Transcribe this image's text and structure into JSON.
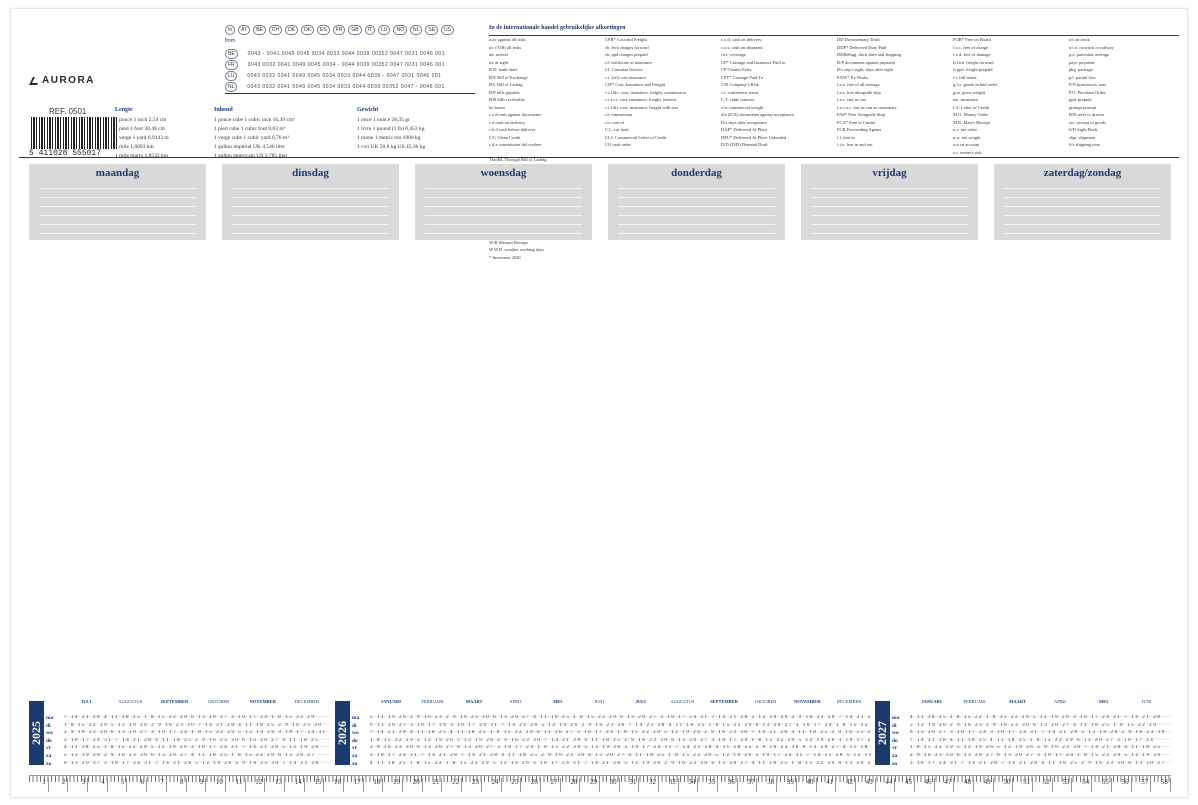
{
  "brand": {
    "logo_text": "AURORA",
    "ref_label": "REF. 0501",
    "barcode_number": "5 411028 555017"
  },
  "countries": {
    "to_label": "to",
    "from_label": "from",
    "header_codes": [
      "AT",
      "BE",
      "CH",
      "DE",
      "DK",
      "ES",
      "FR",
      "GB",
      "IT",
      "LU",
      "NO",
      "NL",
      "SE",
      "US"
    ],
    "rows": [
      {
        "code": "BE",
        "numbers": "0043 - 0041 0049 0045 0034 0033 0044 0039 00352 0047 0031 0046 001"
      },
      {
        "code": "FR",
        "numbers": "0043 0032 0041 0049 0045 0034 - 0044 0039 00352 0047 0031 0046 001"
      },
      {
        "code": "LU",
        "numbers": "0043 0032 0041 0049 0045 0034 0033 0044 0039 - 0047 0031 0046 001"
      },
      {
        "code": "NL",
        "numbers": "0043 0032 0041 0049 0045 0034 0033 0044 0039 00352 0047 - 0046 001"
      }
    ]
  },
  "units": [
    {
      "title": "Lengte",
      "rows": [
        "1 pouce   1 inch   2,54 cm",
        "1 pied   1 foot   30,48 cm",
        "1 verge   1 yard   0,9143 m",
        "1 mile      1,6093 km",
        "1 mile marin      1,8532 km"
      ]
    },
    {
      "title": "Inhoud",
      "rows": [
        "1 pouce cube   1 cubic inch   16,39 cm³",
        "1 pied cube   1 cubic foot   0,03 m³",
        "1 verge cube   1 cubic yard   0,76 m³",
        "1 gallon impérial   UK   4,546 liter",
        "1 gallon américain   US   3,785 liter"
      ]
    },
    {
      "title": "Gewicht",
      "rows": [
        "1 once   1 ounce   28,35 gr",
        "1 livre   1 pound (1 lb)   0,453 kg",
        "1 tonne   1 metric ton   1000 kg",
        "1 cwt   UK 50,8 kg   US 45,36 kg"
      ]
    }
  ],
  "terms": {
    "title": "In de internationale handel gebruikelijke afkortingen",
    "columns": [
      [
        "a.a.r  against all risks",
        "a/c (A/R)  all risks",
        "arr.  arrival",
        "a/s  at sight",
        "B.D.  bank draft",
        "B/E  Bill of Exchange",
        "B/L  Bill of Lading",
        "B/P  bills payable",
        "B/R  bills receivable",
        "bx  boxes",
        "c.a.d  cash against documents",
        "c.d  cash on delivery",
        "c.b.d  cash before delivery",
        "C/C  Clean Credit",
        "c.d.a  commission del credere"
      ],
      [
        "CFR*  Cost and Freight",
        "ch. fwd  charges forward",
        "ch. ppd  charges prepaid",
        "c/f  certificate of insurance",
        "CI.  Consular Invoice",
        "c.i. (cif)  cost insurance",
        "CIF*  Cost, Insurance and Freight",
        "c.i.f.&c.  cost, insurance, freight, commission",
        "c.i.f.c.i.  cost, insurance, freight, interest",
        "c.i.f.&i.  cost, insurance, freight with war",
        "c/i  commission",
        "c/o  care of",
        "C.L.  car load",
        "CLC  Commercial Letter of Credit",
        "CO  cash order"
      ],
      [
        "c.o.d.  cash on delivery",
        "c.o.s.  cash on shipment",
        "cov.  coverage",
        "CP*  Carriage and Insurance Paid to",
        "CP  Charter Party",
        "CPT*  Carriage Paid To",
        "C/R  Company's Risk",
        "c.t.  conference terms",
        "C.T.  cable transfer",
        "c/w  commercial weight",
        "d/a (D/A)  documents against acceptance",
        "D/s  days after acceptance",
        "DAP*  Delivered At Place",
        "DPU*  Delivered At Place Unloaded",
        "D/D (D/D)  Demand Draft"
      ],
      [
        "DD  Documentary Draft",
        "DDP*  Delivered Duty Paid",
        "DD&Shpg.  dock dues and shipping",
        "D/P  documents against payment",
        "D/s  day's sight, days after sight",
        "EXW*  Ex Works",
        "f.a.a.  free of all average",
        "f.a.s.  free alongside ship",
        "f.a.c.  fast as can",
        "f.a.c.a.c.  fast as can as customary",
        "FAS*  Free Alongside Ship",
        "FCA*  Free to Carrier",
        "FCR  Forwarding Agents",
        "f.i.  free in",
        "f.i.o.  free in and out"
      ],
      [
        "FOB*  Free on Board",
        "f.o.c.  free of charge",
        "f.o.d.  free of damage",
        "fr.fwd.  freight forward",
        "fr.ppd.  freight prepaid",
        "f.t.  full terms",
        "g.f.o.  goods in bad order",
        "g.m.  gross weight",
        "ins.  insurance",
        "L/C  Letter of Credit",
        "M.O.  Money Order",
        "M.R.  Mate's Receipt",
        "n.v.  net value",
        "n.w.  net weight",
        "o/a  on account",
        "o.r.  owner's risk"
      ],
      [
        "o/t  on truck",
        "o/t.o.  on truck or railway",
        "p.a.  particular average",
        "payt.  payment",
        "pkg.  package",
        "p.l.  partial loss",
        "P/N  promissory note",
        "P.O.  Purchase Order",
        "ppd.  prepaid",
        "prompt  prompt",
        "R/D  refer to drawer",
        "rec.  receipt of goods",
        "S/D  Sight Draft",
        "shpt.  shipment",
        "S/s  shipping note"
      ],
      [
        "ThroBL  Through Bill of Lading",
        "t.l.o.  total loss only",
        "tt.  tare",
        "TT  Telegraphic Transfer",
        "u.c.  usual conditions",
        "u.t.  usual terms",
        "U/W  underwriter",
        "val.  Valuta",
        "vd.p.  values per... valeurs par",
        "W/B  waybill",
        "W/M  weight or measurement",
        "W/R  Warrant Receipt",
        "W.W.D.  weather working days",
        "* Incoterms 2020"
      ]
    ]
  },
  "weekdays": [
    "maandag",
    "dinsdag",
    "woensdag",
    "donderdag",
    "vrijdag",
    "zaterdag/zondag"
  ],
  "calendar": {
    "weekday_abbr": [
      "ma",
      "di",
      "wo",
      "do",
      "vr",
      "za",
      "zo"
    ],
    "years": [
      {
        "year": "2025",
        "months": [
          "JULI",
          "AUGUSTUS",
          "SEPTEMBER",
          "OKTOBER",
          "NOVEMBER",
          "DECEMBER"
        ],
        "bold_months": [
          "JULI",
          "SEPTEMBER",
          "NOVEMBER"
        ]
      },
      {
        "year": "2026",
        "months": [
          "JANUARI",
          "FEBRUARI",
          "MAART",
          "APRIL",
          "MEI",
          "JUNI",
          "JULI",
          "AUGUSTUS",
          "SEPTEMBER",
          "OKTOBER",
          "NOVEMBER",
          "DECEMBER"
        ],
        "bold_months": [
          "JANUARI",
          "MAART",
          "MEI",
          "JULI",
          "SEPTEMBER",
          "NOVEMBER"
        ]
      },
      {
        "year": "2027",
        "months": [
          "JANUARI",
          "FEBRUARI",
          "MAART",
          "APRIL",
          "MEI",
          "JUNI"
        ],
        "bold_months": [
          "JANUARI",
          "MAART",
          "MEI"
        ]
      }
    ],
    "rows_2025": [
      "7 14 21 28  4 11 18 25  1 8 15 22 29  6 13 20 27  3 10 17 24  1 8 15 22 29",
      "1 8 15 22 29  5 12 19 26  2 9 16 23 30  7 14 21 28  4 11 18 25  2 9 16 23 30",
      "2 9 16 23 30  6 13 20 27  3 10 17 24  1 8 15 22 29  5 12 19 26  3 10 17 24 31",
      "3 10 17 24 31  7 14 21 28  4 11 18 25  2 9 16 23 30  6 13 20 27  4 11 18 25",
      "4 11 18 25  1 8 15 22 29  5 12 19 26  3 10 17 24 31  7 14 21 28  5 12 19 26",
      "5 12 19 26  2 9 16 23 30  6 13 20 27  4 11 18 25  1 8 15 22 29  6 13 20 27",
      "6 13 20 27  3 10 17 24 31  7 14 21 28  5 12 19 26  2 9 16 23 30  7 14 21 28"
    ],
    "rows_2026": [
      "5 12 19 26  2 9 16 23  2 9 16 23 30  6 13 20 27  4 11 18 25  1 8 15 22 29  6 13 20 27  3 10 17 24 31  7 14 21 28  5 12 19 26  2 9 16 23 30  7 14 21 28",
      "6 13 20 27  3 10 17 24  3 10 17 24 31  7 14 21 28  5 12 19 26  2 9 16 23 30  7 14 21 28  4 11 18 25  1 8 15 22 29  6 13 20 27  3 10 17 24  1 8 15 22 29",
      "7 14 21 28  4 11 18 25  4 11 18 25  1 8 15 22 29  6 13 20 27  3 10 17 24  1 8 15 22 29  5 12 19 26  2 9 16 23 30  7 14 21 28  4 11 18 25  2 9 16 23 30",
      "1 8 15 22 29  5 12 19 26  5 12 19 26  2 9 16 23 30  7 14 21 28  4 11 18 25  2 9 16 23 30  6 13 20 27  3 10 17 24  1 8 15 22 29  5 12 19 26  3 10 17 24 31",
      "2 9 16 23 30  6 13 20 27  6 13 20 27  3 10 17 24  1 8 15 22 29  5 12 19 26  3 10 17 24 31  7 14 21 28  4 11 18 25  2 9 16 23 30  6 13 20 27  4 11 18 25",
      "3 10 17 24 31  7 14 21 28  7 14 21 28  4 11 18 25  2 9 16 23 30  6 13 20 27  4 11 18 25  1 8 15 22 29  5 12 19 26  3 10 17 24 31  7 14 21 28  5 12 19 26",
      "4 11 18 25  1 8 15 22  1 8 15 22 29  5 12 19 26  3 10 17 24 31  7 14 21 28  5 12 19 26  2 9 16 23 30  6 13 20 27  4 11 18 25  1 8 15 22 29  6 13 20 27"
    ],
    "rows_2027": [
      "4 11 18 25  1 8 15 22  1 8 15 22 29  5 12 19 26  3 10 17 24 31  7 14 21 28",
      "5 12 19 26  2 9 16 23  2 9 16 23 30  6 13 20 27  4 11 18 25  1 8 15 22 29",
      "6 13 20 27  3 10 17 24  3 10 17 24 31  7 14 21 28  5 12 19 26  2 9 16 23 30",
      "7 14 21 28  4 11 18 25  4 11 18 25  1 8 15 22 29  6 13 20 27  3 10 17 24",
      "1 8 15 22 29  5 12 19 26  5 12 19 26  2 9 16 23 30  7 14 21 28  4 11 18 25",
      "2 9 16 23 30  6 13 20 27  6 13 20 27  3 10 17 24  1 8 15 22 29  5 12 19 26",
      "3 10 17 24 31  7 14 21 28  7 14 21 28  4 11 18 25  2 9 16 23 30  6 13 20 27"
    ]
  },
  "ruler": [
    "1",
    "2",
    "3",
    "4",
    "5",
    "6",
    "7",
    "8",
    "9",
    "10",
    "11",
    "12",
    "13",
    "14",
    "15",
    "16",
    "17",
    "18",
    "19",
    "20",
    "21",
    "22",
    "23",
    "24",
    "25",
    "26",
    "27",
    "28",
    "29",
    "30",
    "31",
    "32",
    "33",
    "34",
    "35",
    "36",
    "37",
    "38",
    "39",
    "40",
    "41",
    "42",
    "43",
    "44",
    "45",
    "46",
    "47",
    "48",
    "49",
    "50",
    "51",
    "52",
    "53",
    "54",
    "55",
    "56",
    "57",
    "58"
  ],
  "colors": {
    "accent": "#1b3b6f",
    "box": "#d9d9d9"
  }
}
